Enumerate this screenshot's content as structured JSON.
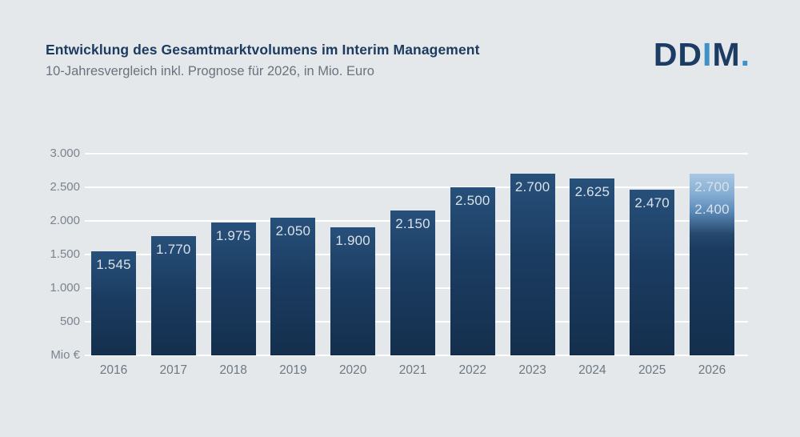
{
  "header": {
    "title": "Entwicklung des Gesamtmarktvolumens im Interim Management",
    "subtitle": "10-Jahresvergleich inkl. Prognose für 2026, in Mio. Euro",
    "logo": {
      "segments": [
        {
          "text": "DD",
          "color": "#1d3c63"
        },
        {
          "text": "I",
          "color": "#4191c9"
        },
        {
          "text": "M",
          "color": "#1d3c63"
        },
        {
          "text": ".",
          "color": "#4191c9"
        }
      ]
    }
  },
  "chart_data": {
    "type": "bar",
    "title": "Entwicklung des Gesamtmarktvolumens im Interim Management",
    "subtitle": "10-Jahresvergleich inkl. Prognose für 2026, in Mio. Euro",
    "unit_label": "Mio €",
    "ylim": [
      0,
      3000
    ],
    "grid": true,
    "yticks": [
      {
        "value": 3000,
        "label": "3.000"
      },
      {
        "value": 2500,
        "label": "2.500"
      },
      {
        "value": 2000,
        "label": "2.000"
      },
      {
        "value": 1500,
        "label": "1.500"
      },
      {
        "value": 1000,
        "label": "1.000"
      },
      {
        "value": 500,
        "label": "500"
      },
      {
        "value": 0,
        "label": "Mio €"
      }
    ],
    "bars": [
      {
        "category": "2016",
        "value": 1545,
        "label": "1.545"
      },
      {
        "category": "2017",
        "value": 1770,
        "label": "1.770"
      },
      {
        "category": "2018",
        "value": 1975,
        "label": "1.975"
      },
      {
        "category": "2019",
        "value": 2050,
        "label": "2.050"
      },
      {
        "category": "2020",
        "value": 1900,
        "label": "1.900"
      },
      {
        "category": "2021",
        "value": 2150,
        "label": "2.150"
      },
      {
        "category": "2022",
        "value": 2500,
        "label": "2.500"
      },
      {
        "category": "2023",
        "value": 2700,
        "label": "2.700"
      },
      {
        "category": "2024",
        "value": 2625,
        "label": "2.625"
      },
      {
        "category": "2025",
        "value": 2470,
        "label": "2.470"
      },
      {
        "category": "2026",
        "value": 2700,
        "value_low": 2400,
        "labels": [
          "2.700",
          "2.400"
        ],
        "forecast": true
      }
    ],
    "colors": {
      "background": "#e4e8eb",
      "bar_dark": "#1b3c61",
      "forecast_light": "#a9c8e2",
      "grid": "#ffffff",
      "title": "#1c3b60",
      "subtitle": "#68737e",
      "axis_text": "#7b848d",
      "bar_value_text": "#d9e1e9"
    }
  }
}
